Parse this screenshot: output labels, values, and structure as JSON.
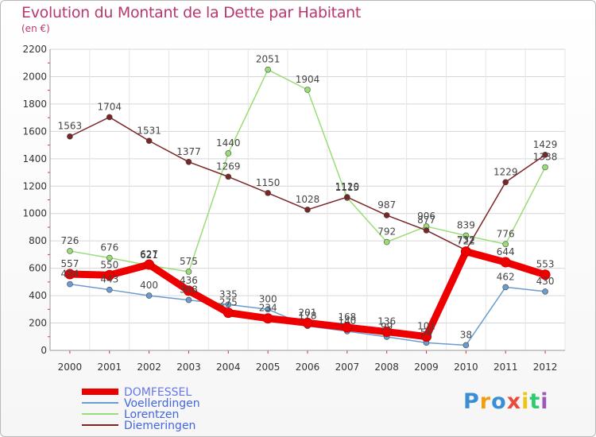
{
  "title": "Evolution du Montant de la Dette par Habitant",
  "subtitle": "(en €)",
  "logo": {
    "letters": [
      "P",
      "r",
      "o",
      "x",
      "i",
      "t",
      "i"
    ],
    "colors": [
      "#3a8fd4",
      "#f39c12",
      "#3a8fd4",
      "#e74c3c",
      "#f1c40f",
      "#2ecc71",
      "#9b59b6"
    ]
  },
  "chart_data": {
    "type": "line",
    "x": [
      "2000",
      "2001",
      "2002",
      "2003",
      "2004",
      "2005",
      "2006",
      "2007",
      "2008",
      "2009",
      "2010",
      "2011",
      "2012"
    ],
    "ylim": [
      0,
      2200
    ],
    "yticks": [
      0,
      200,
      400,
      600,
      800,
      1000,
      1200,
      1400,
      1600,
      1800,
      2000,
      2200
    ],
    "grid": true,
    "legend": "bottom-left",
    "series": [
      {
        "name": "DOMFESSEL",
        "color": "#ee0000",
        "values": [
          557,
          550,
          627,
          436,
          275,
          234,
          201,
          168,
          136,
          101,
          722,
          644,
          553
        ],
        "labels": [
          "557",
          "550",
          "627",
          "436",
          "275",
          "234",
          "201",
          "168",
          "136",
          "101",
          "722",
          "644",
          "553"
        ]
      },
      {
        "name": "Voellerdingen",
        "color": "#6a9ccf",
        "values": [
          484,
          443,
          400,
          368,
          335,
          300,
          178,
          140,
          99,
          56,
          38,
          462,
          430
        ],
        "labels": [
          "484",
          "443",
          "400",
          "368",
          "335",
          "300",
          "178",
          "140",
          "99",
          "56",
          "38",
          "462",
          "430"
        ]
      },
      {
        "name": "Lorentzen",
        "color": "#99dd77",
        "values": [
          726,
          676,
          621,
          575,
          1440,
          2051,
          1904,
          1115,
          792,
          906,
          839,
          776,
          1338
        ],
        "labels": [
          "726",
          "676",
          "621",
          "575",
          "1440",
          "2051",
          "1904",
          "1115",
          "792",
          "906",
          "839",
          "776",
          "1338"
        ]
      },
      {
        "name": "Diemeringen",
        "color": "#7a2626",
        "values": [
          1563,
          1704,
          1531,
          1377,
          1269,
          1150,
          1028,
          1120,
          987,
          877,
          732,
          1229,
          1429
        ],
        "labels": [
          "1563",
          "1704",
          "1531",
          "1377",
          "1269",
          "1150",
          "1028",
          "1120",
          "987",
          "877",
          "732",
          "1229",
          "1429"
        ]
      }
    ]
  }
}
